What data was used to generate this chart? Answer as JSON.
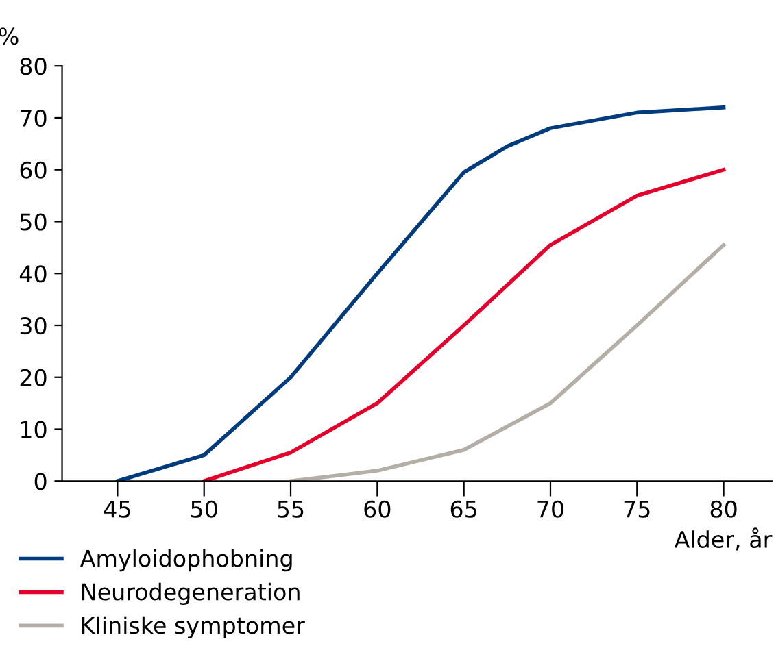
{
  "chart_data": {
    "type": "line",
    "xlabel": "Alder, år",
    "ylabel": "%",
    "xlim": [
      41.8,
      82.8
    ],
    "ylim": [
      0,
      80
    ],
    "xticks": [
      45,
      50,
      55,
      60,
      65,
      70,
      75,
      80
    ],
    "yticks": [
      0,
      10,
      20,
      30,
      40,
      50,
      60,
      70,
      80
    ],
    "grid": false,
    "legend": "bottom",
    "marker": "none",
    "line_style": "solid",
    "series": [
      {
        "name": "Amyloidophobning",
        "color": "#003c7d",
        "x": [
          45,
          50,
          55,
          60,
          65,
          67.5,
          70,
          75,
          80
        ],
        "values": [
          0,
          5,
          20,
          40,
          59.5,
          64.5,
          68,
          71,
          72
        ]
      },
      {
        "name": "Neurodegeneration",
        "color": "#e4002b",
        "x": [
          50,
          55,
          60,
          65,
          70,
          75,
          80
        ],
        "values": [
          0,
          5.5,
          15,
          30,
          45.5,
          55,
          60
        ]
      },
      {
        "name": "Kliniske symptomer",
        "color": "#b5aea6",
        "x": [
          55,
          60,
          65,
          70,
          75,
          80
        ],
        "values": [
          0,
          2,
          6,
          15,
          30,
          45.5
        ]
      }
    ]
  }
}
